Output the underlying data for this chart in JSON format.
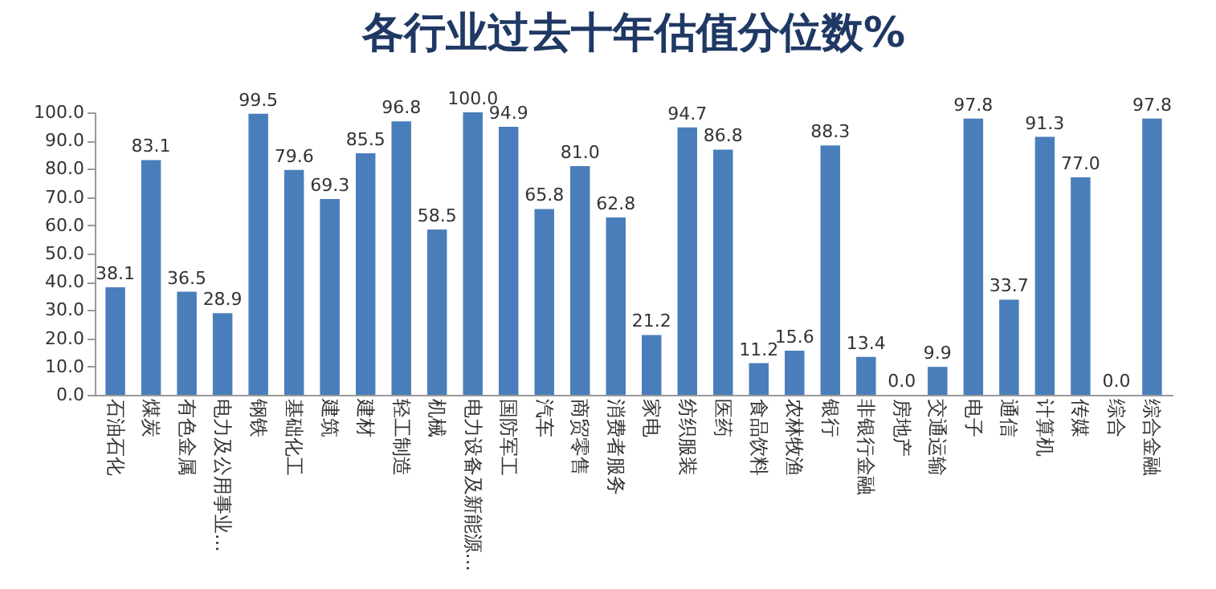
{
  "chart_data": {
    "type": "bar",
    "title": "各行业过去十年估值分位数%",
    "categories": [
      "石油石化",
      "煤炭",
      "有色金属",
      "电力及公用事业...",
      "钢铁",
      "基础化工",
      "建筑",
      "建材",
      "轻工制造",
      "机械",
      "电力设备及新能源...",
      "国防军工",
      "汽车",
      "商贸零售",
      "消费者服务",
      "家电",
      "纺织服装",
      "医药",
      "食品饮料",
      "农林牧渔",
      "银行",
      "非银行金融",
      "房地产",
      "交通运输",
      "电子",
      "通信",
      "计算机",
      "传媒",
      "综合",
      "综合金融"
    ],
    "values": [
      38.1,
      83.1,
      36.5,
      28.9,
      99.5,
      79.6,
      69.3,
      85.5,
      96.8,
      58.5,
      100.0,
      94.9,
      65.8,
      81.0,
      62.8,
      21.2,
      94.7,
      86.8,
      11.2,
      15.6,
      88.3,
      13.4,
      0.0,
      9.9,
      97.8,
      33.7,
      91.3,
      77.0,
      0.0,
      97.8
    ],
    "value_labels": [
      "38.1",
      "83.1",
      "36.5",
      "28.9",
      "99.5",
      "79.6",
      "69.3",
      "85.5",
      "96.8",
      "58.5",
      "100.0",
      "94.9",
      "65.8",
      "81.0",
      "62.8",
      "21.2",
      "94.7",
      "86.8",
      "11.2",
      "15.6",
      "88.3",
      "13.4",
      "0.0",
      "9.9",
      "97.8",
      "33.7",
      "91.3",
      "77.0",
      "0.0",
      "97.8"
    ],
    "color": "#4a7ebb",
    "ylim": [
      0,
      100
    ],
    "yticks": [
      {
        "value": 0,
        "label": "0.0"
      },
      {
        "value": 10,
        "label": "10.0"
      },
      {
        "value": 20,
        "label": "20.0"
      },
      {
        "value": 30,
        "label": "30.0"
      },
      {
        "value": 40,
        "label": "40.0"
      },
      {
        "value": 50,
        "label": "50.0"
      },
      {
        "value": 60,
        "label": "60.0"
      },
      {
        "value": 70,
        "label": "70.0"
      },
      {
        "value": 80,
        "label": "80.0"
      },
      {
        "value": 90,
        "label": "90.0"
      },
      {
        "value": 100,
        "label": "100.0"
      }
    ],
    "grid": false
  }
}
